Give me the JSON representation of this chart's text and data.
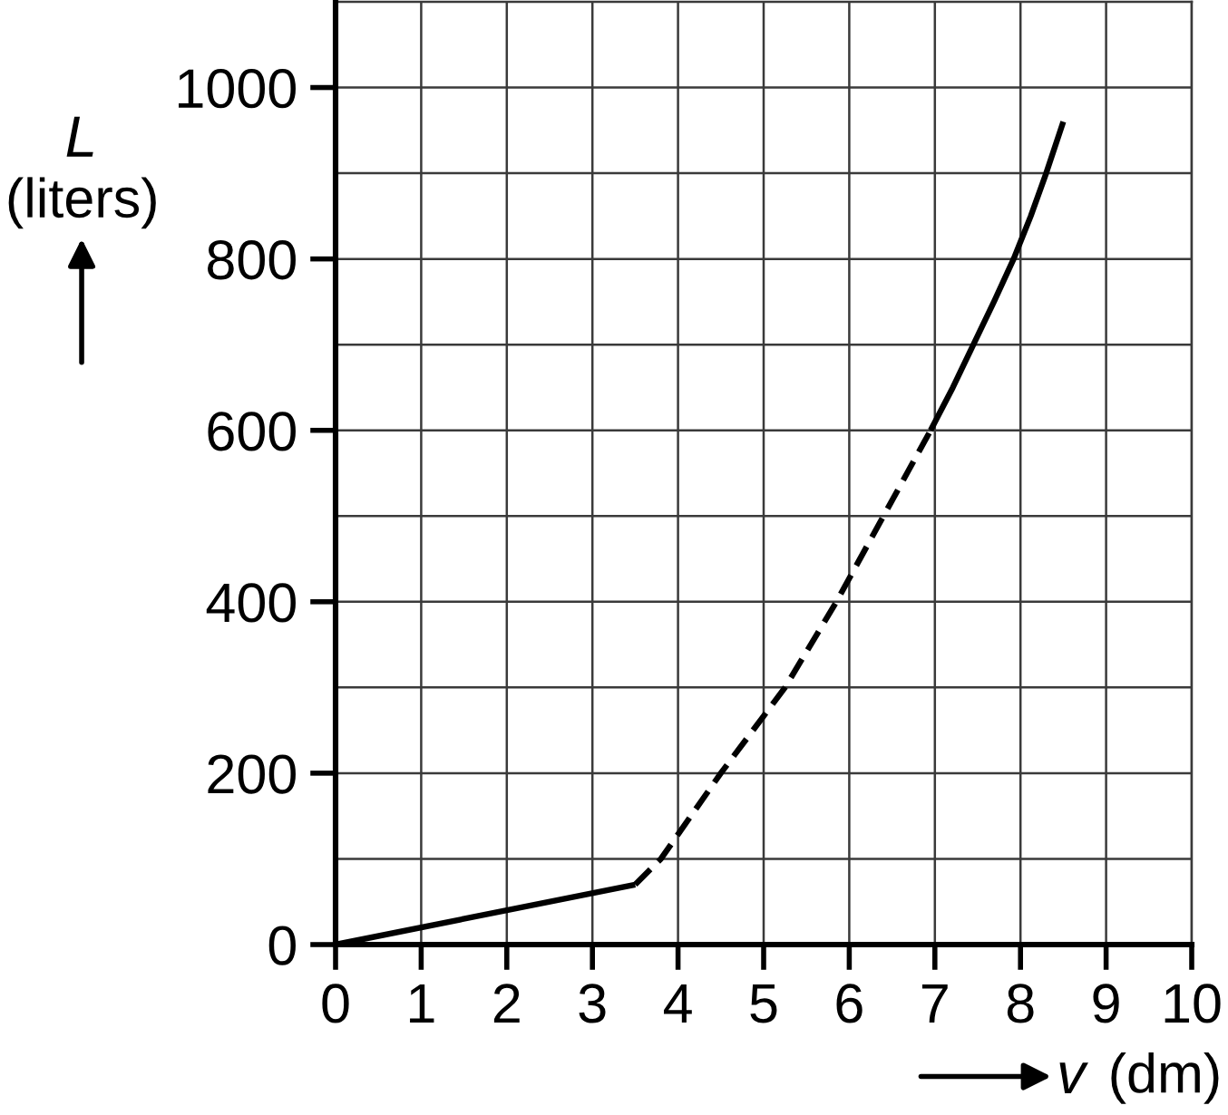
{
  "chart_data": {
    "type": "line",
    "xlabel": "v (dm)",
    "ylabel": "L (liters)",
    "xlim": [
      0,
      10
    ],
    "ylim": [
      0,
      1100
    ],
    "xticks": [
      0,
      1,
      2,
      3,
      4,
      5,
      6,
      7,
      8,
      9,
      10
    ],
    "yticks": [
      0,
      {
        "value": 100,
        "label": null
      },
      200,
      {
        "value": 300,
        "label": null
      },
      400,
      {
        "value": 500,
        "label": null
      },
      600,
      {
        "value": 700,
        "label": null
      },
      800,
      {
        "value": 900,
        "label": null
      },
      1000
    ],
    "grid": true,
    "series": [
      {
        "color": "#000000",
        "line_style": "solid",
        "x": [
          0,
          2,
          3.5
        ],
        "values": [
          0,
          40,
          70
        ]
      },
      {
        "color": "#000000",
        "line_style": "dashed",
        "x": [
          3.5,
          3.8,
          4.5,
          5.25,
          5.85,
          6.4,
          6.95
        ],
        "values": [
          70,
          100,
          200,
          300,
          400,
          500,
          600
        ]
      },
      {
        "color": "#000000",
        "line_style": "solid",
        "x": [
          6.95,
          7.21,
          7.45,
          7.69,
          7.92,
          8.12,
          8.3,
          8.5
        ],
        "values": [
          600,
          650,
          700,
          750,
          800,
          850,
          900,
          960
        ]
      }
    ]
  }
}
